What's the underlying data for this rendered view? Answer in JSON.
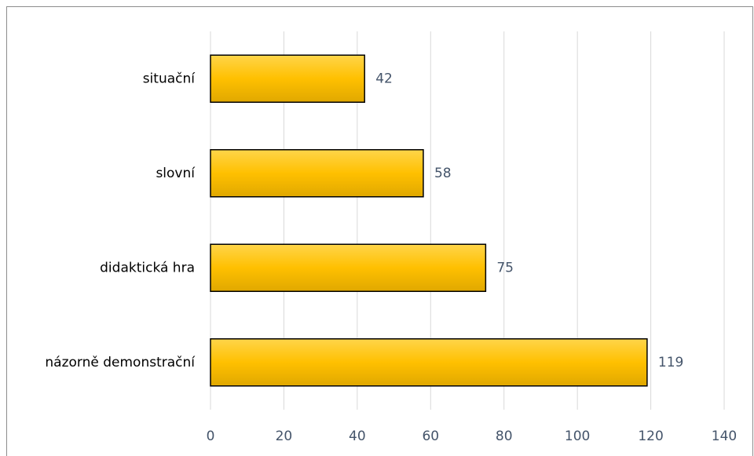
{
  "chart_data": {
    "type": "bar",
    "orientation": "horizontal",
    "categories": [
      "situační",
      "slovní",
      "didaktická hra",
      "názorně demonstrační"
    ],
    "values": [
      42,
      58,
      75,
      119
    ],
    "color": "#ffc000",
    "xlim": [
      0,
      140
    ],
    "xticks": [
      0,
      20,
      40,
      60,
      80,
      100,
      120,
      140
    ],
    "grid": true
  }
}
